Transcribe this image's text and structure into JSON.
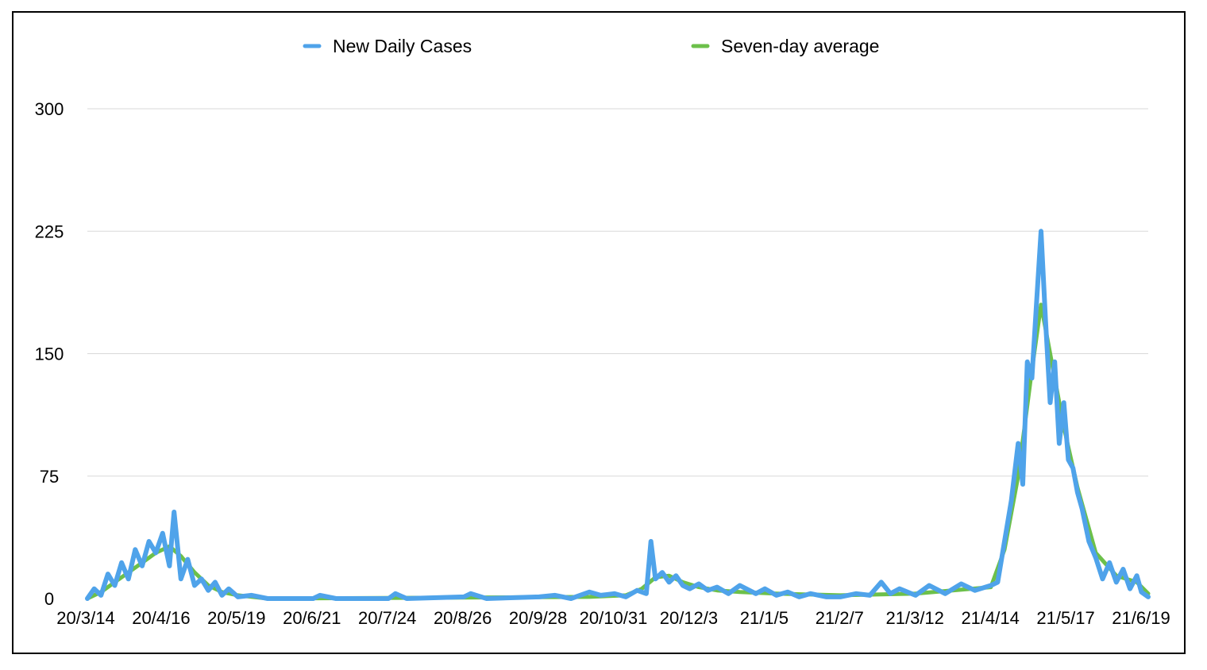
{
  "chart_data": {
    "type": "line",
    "title": "",
    "xlabel": "",
    "ylabel": "",
    "ylim": [
      0,
      300
    ],
    "yticks": [
      0,
      75,
      150,
      225,
      300
    ],
    "grid": true,
    "legend_position": "top-center",
    "x_start": "2020-03-14",
    "x_end": "2021-06-22",
    "xtick_labels": [
      "20/3/14",
      "20/4/16",
      "20/5/19",
      "20/6/21",
      "20/7/24",
      "20/8/26",
      "20/9/28",
      "20/10/31",
      "20/12/3",
      "21/1/5",
      "21/2/7",
      "21/3/12",
      "21/4/14",
      "21/5/17",
      "21/6/19"
    ],
    "series": [
      {
        "name": "New Daily Cases",
        "color": "#4fa3ea",
        "points": [
          [
            "2020-03-14",
            0
          ],
          [
            "2020-03-17",
            6
          ],
          [
            "2020-03-20",
            2
          ],
          [
            "2020-03-23",
            15
          ],
          [
            "2020-03-26",
            8
          ],
          [
            "2020-03-29",
            22
          ],
          [
            "2020-04-01",
            12
          ],
          [
            "2020-04-04",
            30
          ],
          [
            "2020-04-07",
            20
          ],
          [
            "2020-04-10",
            35
          ],
          [
            "2020-04-13",
            28
          ],
          [
            "2020-04-16",
            40
          ],
          [
            "2020-04-19",
            20
          ],
          [
            "2020-04-21",
            53
          ],
          [
            "2020-04-24",
            12
          ],
          [
            "2020-04-27",
            24
          ],
          [
            "2020-04-30",
            8
          ],
          [
            "2020-05-03",
            12
          ],
          [
            "2020-05-06",
            5
          ],
          [
            "2020-05-09",
            10
          ],
          [
            "2020-05-12",
            2
          ],
          [
            "2020-05-15",
            6
          ],
          [
            "2020-05-19",
            1
          ],
          [
            "2020-05-25",
            2
          ],
          [
            "2020-06-01",
            0
          ],
          [
            "2020-06-21",
            0
          ],
          [
            "2020-06-24",
            2
          ],
          [
            "2020-07-01",
            0
          ],
          [
            "2020-07-24",
            0
          ],
          [
            "2020-07-27",
            3
          ],
          [
            "2020-08-01",
            0
          ],
          [
            "2020-08-26",
            1
          ],
          [
            "2020-08-29",
            3
          ],
          [
            "2020-09-05",
            0
          ],
          [
            "2020-09-28",
            1
          ],
          [
            "2020-10-05",
            2
          ],
          [
            "2020-10-12",
            0
          ],
          [
            "2020-10-20",
            4
          ],
          [
            "2020-10-25",
            2
          ],
          [
            "2020-10-31",
            3
          ],
          [
            "2020-11-05",
            1
          ],
          [
            "2020-11-10",
            5
          ],
          [
            "2020-11-14",
            3
          ],
          [
            "2020-11-16",
            35
          ],
          [
            "2020-11-18",
            12
          ],
          [
            "2020-11-21",
            16
          ],
          [
            "2020-11-24",
            10
          ],
          [
            "2020-11-27",
            14
          ],
          [
            "2020-11-30",
            8
          ],
          [
            "2020-12-03",
            6
          ],
          [
            "2020-12-07",
            9
          ],
          [
            "2020-12-11",
            5
          ],
          [
            "2020-12-15",
            7
          ],
          [
            "2020-12-20",
            3
          ],
          [
            "2020-12-25",
            8
          ],
          [
            "2021-01-01",
            3
          ],
          [
            "2021-01-05",
            6
          ],
          [
            "2021-01-10",
            2
          ],
          [
            "2021-01-15",
            4
          ],
          [
            "2021-01-20",
            1
          ],
          [
            "2021-01-25",
            3
          ],
          [
            "2021-02-01",
            1
          ],
          [
            "2021-02-07",
            1
          ],
          [
            "2021-02-14",
            3
          ],
          [
            "2021-02-20",
            2
          ],
          [
            "2021-02-25",
            10
          ],
          [
            "2021-03-01",
            3
          ],
          [
            "2021-03-05",
            6
          ],
          [
            "2021-03-12",
            2
          ],
          [
            "2021-03-18",
            8
          ],
          [
            "2021-03-25",
            3
          ],
          [
            "2021-04-01",
            9
          ],
          [
            "2021-04-07",
            5
          ],
          [
            "2021-04-14",
            8
          ],
          [
            "2021-04-17",
            10
          ],
          [
            "2021-04-20",
            35
          ],
          [
            "2021-04-23",
            60
          ],
          [
            "2021-04-26",
            95
          ],
          [
            "2021-04-28",
            70
          ],
          [
            "2021-04-30",
            145
          ],
          [
            "2021-05-02",
            135
          ],
          [
            "2021-05-04",
            180
          ],
          [
            "2021-05-06",
            225
          ],
          [
            "2021-05-08",
            170
          ],
          [
            "2021-05-10",
            120
          ],
          [
            "2021-05-12",
            145
          ],
          [
            "2021-05-14",
            95
          ],
          [
            "2021-05-16",
            120
          ],
          [
            "2021-05-18",
            85
          ],
          [
            "2021-05-20",
            80
          ],
          [
            "2021-05-22",
            65
          ],
          [
            "2021-05-24",
            55
          ],
          [
            "2021-05-27",
            35
          ],
          [
            "2021-05-30",
            25
          ],
          [
            "2021-06-02",
            12
          ],
          [
            "2021-06-05",
            22
          ],
          [
            "2021-06-08",
            10
          ],
          [
            "2021-06-11",
            18
          ],
          [
            "2021-06-14",
            6
          ],
          [
            "2021-06-17",
            14
          ],
          [
            "2021-06-19",
            4
          ],
          [
            "2021-06-22",
            1
          ]
        ]
      },
      {
        "name": "Seven-day average",
        "color": "#6cc04a",
        "points": [
          [
            "2020-03-14",
            0
          ],
          [
            "2020-03-20",
            4
          ],
          [
            "2020-03-26",
            10
          ],
          [
            "2020-04-01",
            16
          ],
          [
            "2020-04-07",
            22
          ],
          [
            "2020-04-13",
            28
          ],
          [
            "2020-04-19",
            32
          ],
          [
            "2020-04-24",
            26
          ],
          [
            "2020-04-30",
            16
          ],
          [
            "2020-05-06",
            8
          ],
          [
            "2020-05-12",
            4
          ],
          [
            "2020-05-19",
            2
          ],
          [
            "2020-06-01",
            0
          ],
          [
            "2020-10-20",
            1
          ],
          [
            "2020-11-05",
            2
          ],
          [
            "2020-11-12",
            6
          ],
          [
            "2020-11-18",
            13
          ],
          [
            "2020-11-24",
            14
          ],
          [
            "2020-11-30",
            10
          ],
          [
            "2020-12-07",
            7
          ],
          [
            "2020-12-15",
            5
          ],
          [
            "2020-12-25",
            4
          ],
          [
            "2021-01-10",
            3
          ],
          [
            "2021-02-07",
            2
          ],
          [
            "2021-03-12",
            3
          ],
          [
            "2021-04-14",
            7
          ],
          [
            "2021-04-20",
            30
          ],
          [
            "2021-04-26",
            75
          ],
          [
            "2021-05-02",
            140
          ],
          [
            "2021-05-06",
            180
          ],
          [
            "2021-05-10",
            150
          ],
          [
            "2021-05-16",
            105
          ],
          [
            "2021-05-22",
            68
          ],
          [
            "2021-05-30",
            28
          ],
          [
            "2021-06-08",
            14
          ],
          [
            "2021-06-17",
            10
          ],
          [
            "2021-06-22",
            3
          ]
        ]
      }
    ]
  }
}
